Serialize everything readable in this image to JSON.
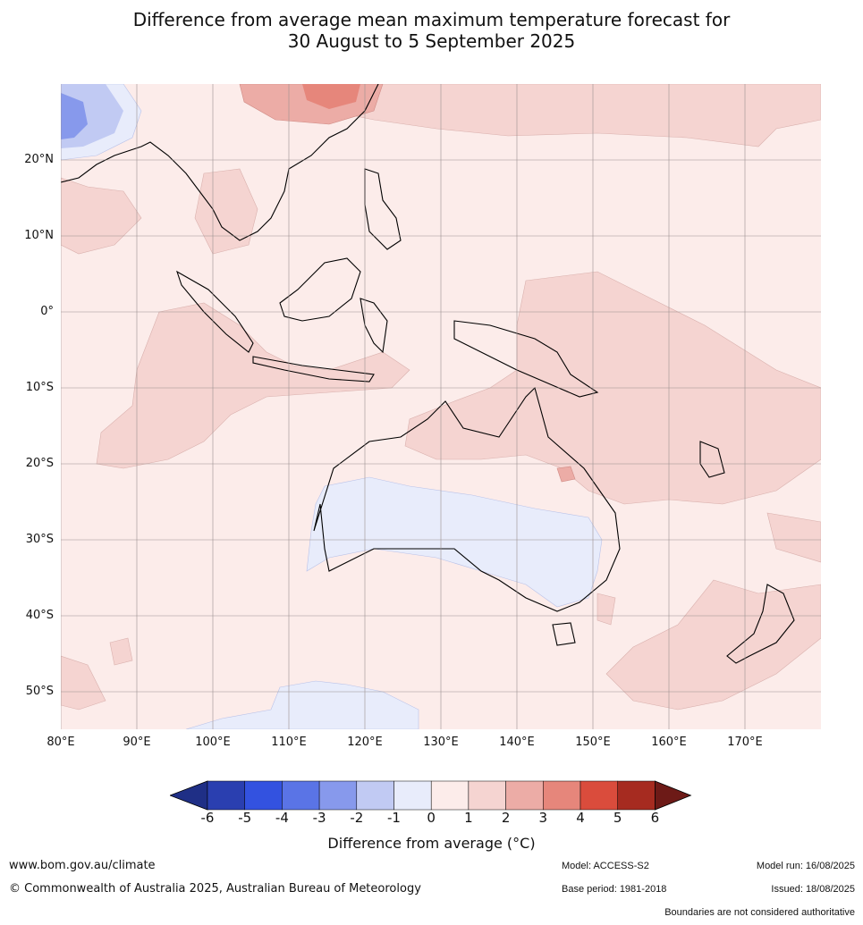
{
  "title": {
    "line1": "Difference from average mean maximum temperature forecast for",
    "line2": "30 August to 5 September 2025"
  },
  "map": {
    "latitude_labels": [
      "20°N",
      "10°N",
      "0°",
      "10°S",
      "20°S",
      "30°S",
      "40°S",
      "50°S"
    ],
    "longitude_labels": [
      "80°E",
      "90°E",
      "100°E",
      "110°E",
      "120°E",
      "130°E",
      "140°E",
      "150°E",
      "160°E",
      "170°E"
    ]
  },
  "legend": {
    "ticks": [
      "-6",
      "-5",
      "-4",
      "-3",
      "-2",
      "-1",
      "0",
      "1",
      "2",
      "3",
      "4",
      "5",
      "6"
    ],
    "colors": [
      "#1f2f86",
      "#2a3fb0",
      "#3352e0",
      "#5a74e6",
      "#8799ec",
      "#c1caf3",
      "#e8ecfb",
      "#fcecea",
      "#f5d4d1",
      "#ecaca6",
      "#e6867b",
      "#da4c3c",
      "#a62b20",
      "#6d1a17"
    ],
    "label": "Difference from average (°C)"
  },
  "footer": {
    "website": "www.bom.gov.au/climate",
    "copyright": "© Commonwealth of Australia 2025, Australian Bureau of Meteorology",
    "model": "Model: ACCESS-S2",
    "base_period": "Base period: 1981-2018",
    "model_run": "Model run: 16/08/2025",
    "issued": "Issued: 18/08/2025",
    "disclaimer": "Boundaries are not considered authoritative"
  }
}
